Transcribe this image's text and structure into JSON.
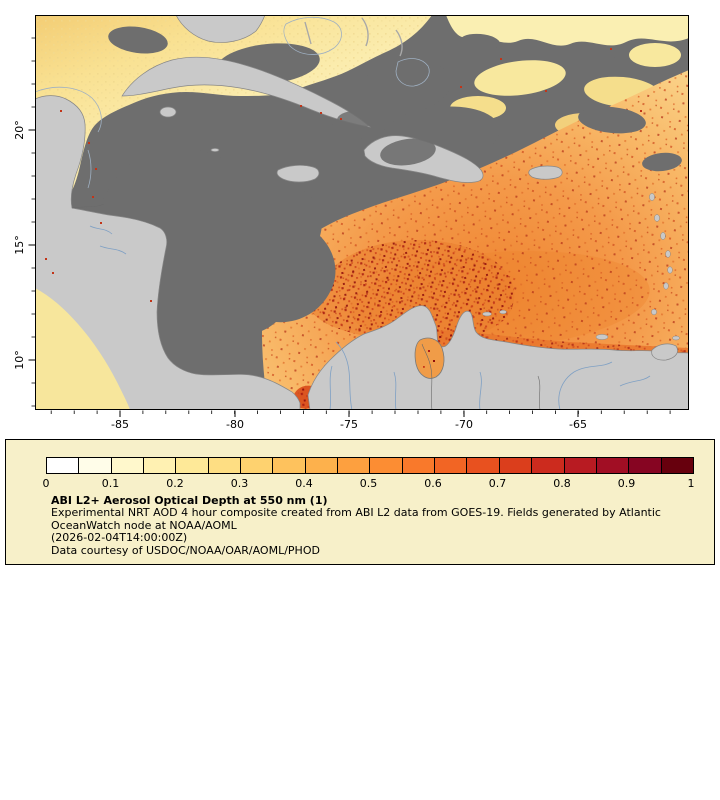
{
  "map": {
    "lat_labels": [
      "20°",
      "15°",
      "10°"
    ],
    "lon_labels": [
      "-85",
      "-80",
      "-75",
      "-70",
      "-65"
    ]
  },
  "legend": {
    "title": "ABI L2+ Aerosol Optical Depth at 550 nm (1)",
    "line1": "Experimental NRT AOD 4 hour composite created from ABI L2 data from GOES-19. Fields generated by Atlantic",
    "line2": "OceanWatch node at NOAA/AOML",
    "timestamp": "(2026-02-04T14:00:00Z)",
    "courtesy": "Data courtesy of USDOC/NOAA/OAR/AOML/PHOD",
    "tick_labels": [
      "0",
      "0.1",
      "0.2",
      "0.3",
      "0.4",
      "0.5",
      "0.6",
      "0.7",
      "0.8",
      "0.9",
      "1"
    ],
    "colorbar_colors": [
      "#ffffff",
      "#fffde9",
      "#fff8cc",
      "#fff1b2",
      "#fee998",
      "#fede83",
      "#fed26f",
      "#fec25d",
      "#fdb14c",
      "#fda03f",
      "#fc8d33",
      "#f9792b",
      "#f26524",
      "#e8511f",
      "#db3e1c",
      "#cc2b1e",
      "#b81b22",
      "#a10e24",
      "#860522",
      "#67000d"
    ],
    "scale_min": "0",
    "scale_max": "1"
  },
  "colors": {
    "no_data_gray": "#6E6E6E",
    "land_gray": "#C9C9C9",
    "legend_bg": "#F7F0C9"
  }
}
